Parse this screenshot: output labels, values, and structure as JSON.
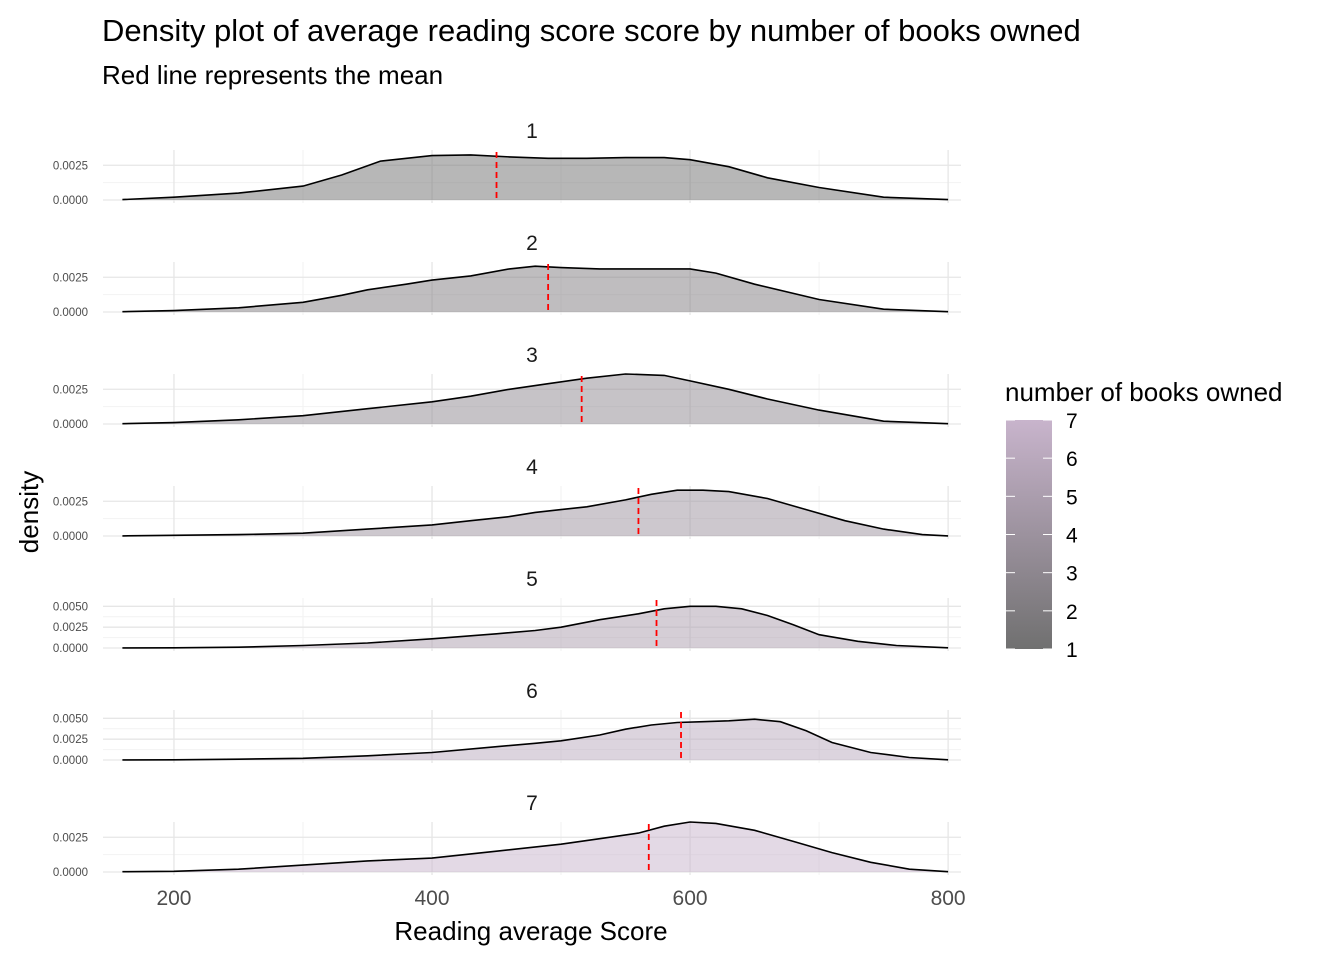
{
  "chart_data": {
    "type": "area",
    "title": "Density plot of average reading score score by number of books owned",
    "subtitle": "Red line represents the mean",
    "xlabel": "Reading average Score",
    "ylabel": "density",
    "xlim": [
      145,
      810
    ],
    "x_ticks": [
      200,
      400,
      600,
      800
    ],
    "x_tick_labels": [
      "200",
      "400",
      "600",
      "800"
    ],
    "grid": true,
    "facet_layout": "one column, 7 rows",
    "mean_line_color": "#ff0000",
    "mean_line_style": "dashed",
    "fill_scale": {
      "low": "#707070",
      "high": "#c8b4cc",
      "breaks": [
        1,
        2,
        3,
        4,
        5,
        6,
        7
      ]
    },
    "fill_alpha": 0.5,
    "legend": {
      "title": "number of books owned",
      "placement": "right",
      "labels": [
        "7",
        "6",
        "5",
        "4",
        "3",
        "2",
        "1"
      ]
    },
    "panels": [
      {
        "label": "1",
        "group": 1,
        "mean": 450,
        "ylim": [
          0,
          0.0036
        ],
        "y_ticks": [
          0,
          0.0025
        ],
        "y_tick_labels": [
          "0.0000",
          "0.0025"
        ],
        "x": [
          160,
          200,
          250,
          300,
          330,
          360,
          400,
          430,
          460,
          490,
          520,
          550,
          580,
          600,
          630,
          660,
          700,
          750,
          800
        ],
        "density": [
          3e-05,
          0.0002,
          0.0005,
          0.001,
          0.0018,
          0.0028,
          0.0032,
          0.00325,
          0.0031,
          0.003,
          0.003,
          0.00305,
          0.00305,
          0.0029,
          0.0024,
          0.0016,
          0.0009,
          0.0002,
          3e-05
        ]
      },
      {
        "label": "2",
        "group": 2,
        "mean": 490,
        "ylim": [
          0,
          0.0036
        ],
        "y_ticks": [
          0,
          0.0025
        ],
        "y_tick_labels": [
          "0.0000",
          "0.0025"
        ],
        "x": [
          160,
          200,
          250,
          300,
          330,
          350,
          380,
          400,
          430,
          460,
          480,
          500,
          530,
          560,
          600,
          620,
          650,
          700,
          750,
          800
        ],
        "density": [
          2e-05,
          0.0001,
          0.0003,
          0.0007,
          0.0012,
          0.0016,
          0.002,
          0.0023,
          0.0026,
          0.0031,
          0.0033,
          0.0032,
          0.0031,
          0.0031,
          0.0031,
          0.0028,
          0.002,
          0.0009,
          0.0002,
          2e-05
        ]
      },
      {
        "label": "3",
        "group": 3,
        "mean": 516,
        "ylim": [
          0,
          0.0036
        ],
        "y_ticks": [
          0,
          0.0025
        ],
        "y_tick_labels": [
          "0.0000",
          "0.0025"
        ],
        "x": [
          160,
          200,
          250,
          300,
          350,
          400,
          430,
          460,
          490,
          520,
          550,
          580,
          600,
          630,
          660,
          700,
          750,
          800
        ],
        "density": [
          2e-05,
          0.0001,
          0.0003,
          0.0006,
          0.0011,
          0.0016,
          0.002,
          0.0025,
          0.0029,
          0.0033,
          0.0036,
          0.0035,
          0.0031,
          0.0025,
          0.0018,
          0.001,
          0.0002,
          2e-05
        ]
      },
      {
        "label": "4",
        "group": 4,
        "mean": 560,
        "ylim": [
          0,
          0.0036
        ],
        "y_ticks": [
          0,
          0.0025
        ],
        "y_tick_labels": [
          "0.0000",
          "0.0025"
        ],
        "x": [
          160,
          200,
          250,
          300,
          350,
          400,
          430,
          460,
          480,
          500,
          520,
          550,
          570,
          590,
          610,
          630,
          660,
          690,
          720,
          750,
          780,
          800
        ],
        "density": [
          1e-05,
          5e-05,
          0.0001,
          0.0002,
          0.0005,
          0.0008,
          0.0011,
          0.0014,
          0.0017,
          0.0019,
          0.0021,
          0.0026,
          0.003,
          0.0033,
          0.0033,
          0.0032,
          0.0027,
          0.0019,
          0.0011,
          0.0005,
          0.0001,
          1e-05
        ]
      },
      {
        "label": "5",
        "group": 5,
        "mean": 574,
        "ylim": [
          0,
          0.006
        ],
        "y_ticks": [
          0,
          0.0025,
          0.005
        ],
        "y_tick_labels": [
          "0.0000",
          "0.0025",
          "0.0050"
        ],
        "x": [
          160,
          200,
          250,
          300,
          350,
          400,
          450,
          480,
          500,
          530,
          560,
          580,
          600,
          620,
          640,
          660,
          680,
          700,
          730,
          760,
          800
        ],
        "density": [
          1e-05,
          3e-05,
          0.0001,
          0.0003,
          0.0006,
          0.0011,
          0.0017,
          0.0021,
          0.0025,
          0.0034,
          0.0041,
          0.0047,
          0.005,
          0.005,
          0.0047,
          0.0039,
          0.0028,
          0.0016,
          0.0008,
          0.0003,
          2e-05
        ]
      },
      {
        "label": "6",
        "group": 6,
        "mean": 593,
        "ylim": [
          0,
          0.006
        ],
        "y_ticks": [
          0,
          0.0025,
          0.005
        ],
        "y_tick_labels": [
          "0.0000",
          "0.0025",
          "0.0050"
        ],
        "x": [
          160,
          200,
          250,
          300,
          350,
          400,
          450,
          480,
          500,
          530,
          550,
          570,
          590,
          610,
          630,
          650,
          670,
          690,
          710,
          740,
          770,
          800
        ],
        "density": [
          1e-05,
          3e-05,
          0.0001,
          0.0002,
          0.0005,
          0.0009,
          0.0016,
          0.002,
          0.0023,
          0.003,
          0.0037,
          0.0042,
          0.0045,
          0.0046,
          0.0047,
          0.0049,
          0.0046,
          0.0035,
          0.0021,
          0.0009,
          0.0003,
          2e-05
        ]
      },
      {
        "label": "7",
        "group": 7,
        "mean": 568,
        "ylim": [
          0,
          0.0036
        ],
        "y_ticks": [
          0,
          0.0025
        ],
        "y_tick_labels": [
          "0.0000",
          "0.0025"
        ],
        "x": [
          160,
          200,
          250,
          300,
          350,
          400,
          450,
          500,
          530,
          560,
          580,
          600,
          620,
          650,
          680,
          710,
          740,
          770,
          800
        ],
        "density": [
          2e-05,
          5e-05,
          0.0002,
          0.0005,
          0.0008,
          0.001,
          0.0015,
          0.002,
          0.0024,
          0.0028,
          0.0033,
          0.0036,
          0.0035,
          0.003,
          0.0022,
          0.0014,
          0.0007,
          0.0002,
          2e-05
        ]
      }
    ]
  }
}
